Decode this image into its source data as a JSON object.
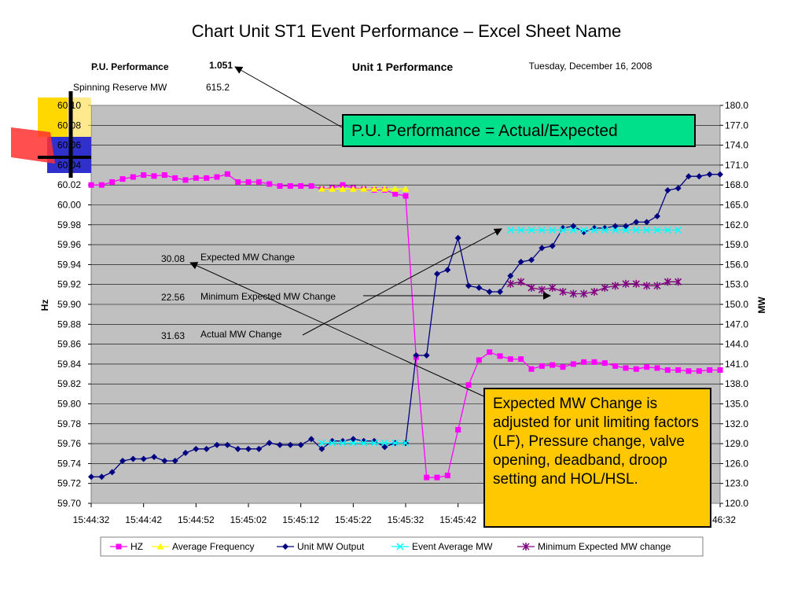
{
  "title": "Chart Unit ST1 Event Performance – Excel Sheet Name",
  "header": {
    "pu_label": "P.U. Performance",
    "pu_value": "1.051",
    "chart_title": "Unit 1 Performance",
    "date": "Tuesday, December 16, 2008",
    "spin_label": "Spinning Reserve MW",
    "spin_value": "615.2"
  },
  "annotations": {
    "expected_value": "30.08",
    "expected_label": "Expected MW Change",
    "minimum_value": "22.56",
    "minimum_label": "Minimum Expected MW Change",
    "actual_value": "31.63",
    "actual_label": "Actual MW Change",
    "callout_pu": "P.U. Performance = Actual/Expected",
    "callout_expected": "Expected MW Change is adjusted for unit limiting factors (LF), Pressure change, valve opening, deadband, droop setting and HOL/HSL."
  },
  "colors": {
    "plot_bg": "#c0c0c0",
    "hz": "#ff00ff",
    "avg_freq": "#ffff00",
    "unit_mw": "#000080",
    "event_avg_mw": "#00ffff",
    "min_expected": "#800080",
    "callout_green": "#00e08a",
    "callout_yellow": "#ffc800"
  },
  "chart_data": {
    "type": "line",
    "title": "Unit 1 Performance",
    "xlabel": "",
    "ylabel": "Hz",
    "y2label": "MW",
    "ylim": [
      59.7,
      60.1
    ],
    "y2lim": [
      120.0,
      180.0
    ],
    "grid": true,
    "legend": "bottom",
    "y_ticks": [
      "59.70",
      "59.72",
      "59.74",
      "59.76",
      "59.78",
      "59.80",
      "59.82",
      "59.84",
      "59.86",
      "59.88",
      "59.90",
      "59.92",
      "59.94",
      "59.96",
      "59.98",
      "60.00",
      "60.02",
      "60.04",
      "60.06",
      "60.08",
      "60.10"
    ],
    "y2_ticks": [
      "120.0",
      "123.0",
      "126.0",
      "129.0",
      "132.0",
      "135.0",
      "138.0",
      "141.0",
      "144.0",
      "147.0",
      "150.0",
      "153.0",
      "156.0",
      "159.0",
      "162.0",
      "165.0",
      "168.0",
      "171.0",
      "174.0",
      "177.0",
      "180.0"
    ],
    "x_ticks": [
      "15:44:32",
      "15:44:42",
      "15:44:52",
      "15:45:02",
      "15:45:12",
      "15:45:22",
      "15:45:32",
      "15:45:42",
      "",
      "",
      "",
      "",
      "46:32"
    ],
    "x_range": [
      0,
      120
    ],
    "series": [
      {
        "name": "HZ",
        "axis": "left",
        "marker": "square",
        "x": [
          0,
          2,
          4,
          6,
          8,
          10,
          12,
          14,
          16,
          18,
          20,
          22,
          24,
          26,
          28,
          30,
          32,
          34,
          36,
          38,
          40,
          42,
          44,
          46,
          48,
          50,
          52,
          54,
          56,
          58,
          60,
          62,
          64,
          66,
          68,
          70,
          72,
          74,
          76,
          78,
          80,
          82,
          84,
          86,
          88,
          90,
          92,
          94,
          96,
          98,
          100,
          102,
          104,
          106,
          108,
          110,
          112,
          114,
          116,
          118,
          120
        ],
        "values": [
          60.02,
          60.02,
          60.023,
          60.026,
          60.028,
          60.03,
          60.029,
          60.03,
          60.027,
          60.025,
          60.027,
          60.027,
          60.028,
          60.031,
          60.023,
          60.023,
          60.023,
          60.021,
          60.019,
          60.019,
          60.019,
          60.019,
          60.016,
          60.017,
          60.02,
          60.017,
          60.016,
          60.015,
          60.015,
          60.011,
          60.009,
          59.847,
          59.726,
          59.726,
          59.728,
          59.774,
          59.819,
          59.844,
          59.852,
          59.848,
          59.845,
          59.845,
          59.835,
          59.838,
          59.839,
          59.837,
          59.84,
          59.842,
          59.842,
          59.841,
          59.838,
          59.836,
          59.835,
          59.837,
          59.836,
          59.834,
          59.834,
          59.833,
          59.833,
          59.834,
          59.834
        ]
      },
      {
        "name": "Average Frequency",
        "axis": "left",
        "marker": "triangle",
        "x": [
          44,
          46,
          48,
          50,
          52,
          54,
          56,
          58,
          60
        ],
        "values": [
          60.016,
          60.016,
          60.016,
          60.016,
          60.016,
          60.016,
          60.016,
          60.016,
          60.016
        ]
      },
      {
        "name": "Unit MW Output",
        "axis": "right",
        "marker": "diamond",
        "x": [
          0,
          2,
          4,
          6,
          8,
          10,
          12,
          14,
          16,
          18,
          20,
          22,
          24,
          26,
          28,
          30,
          32,
          34,
          36,
          38,
          40,
          42,
          44,
          46,
          48,
          50,
          52,
          54,
          56,
          58,
          60,
          62,
          64,
          66,
          68,
          70,
          72,
          74,
          76,
          78,
          80,
          82,
          84,
          86,
          88,
          90,
          92,
          94,
          96,
          98,
          100,
          102,
          104,
          106,
          108,
          110,
          112,
          114,
          116,
          118,
          120
        ],
        "values": [
          124.0,
          124.0,
          124.7,
          126.4,
          126.7,
          126.7,
          127.0,
          126.4,
          126.4,
          127.6,
          128.2,
          128.2,
          128.8,
          128.8,
          128.2,
          128.2,
          128.2,
          129.1,
          128.8,
          128.8,
          128.8,
          129.7,
          128.2,
          129.4,
          129.4,
          129.7,
          129.4,
          129.4,
          128.5,
          129.1,
          129.1,
          142.3,
          142.3,
          154.6,
          155.2,
          160.0,
          152.8,
          152.5,
          151.9,
          151.9,
          154.3,
          156.4,
          156.7,
          158.5,
          158.8,
          161.5,
          161.8,
          160.9,
          161.5,
          161.5,
          161.8,
          161.8,
          162.4,
          162.4,
          163.3,
          167.2,
          167.5,
          169.3,
          169.3,
          169.6,
          169.6
        ]
      },
      {
        "name": "Event Average MW",
        "axis": "right",
        "marker": "x",
        "x": [
          44,
          46,
          48,
          50,
          52,
          54,
          56,
          58,
          60,
          80,
          82,
          84,
          86,
          88,
          90,
          92,
          94,
          96,
          98,
          100,
          102,
          104,
          106,
          108,
          110,
          112
        ],
        "values": [
          129.1,
          129.1,
          129.1,
          129.1,
          129.1,
          129.1,
          129.1,
          129.1,
          129.1,
          161.2,
          161.2,
          161.2,
          161.2,
          161.2,
          161.2,
          161.2,
          161.2,
          161.2,
          161.2,
          161.2,
          161.2,
          161.2,
          161.2,
          161.2,
          161.2,
          161.2
        ]
      },
      {
        "name": "Minimum Expected MW change",
        "axis": "right",
        "marker": "star",
        "x": [
          80,
          82,
          84,
          86,
          88,
          90,
          92,
          94,
          96,
          98,
          100,
          102,
          104,
          106,
          108,
          110,
          112
        ],
        "values": [
          153.1,
          153.4,
          152.5,
          152.2,
          152.5,
          151.9,
          151.6,
          151.6,
          151.9,
          152.5,
          152.8,
          153.1,
          153.1,
          152.8,
          152.8,
          153.4,
          153.4
        ]
      }
    ]
  }
}
